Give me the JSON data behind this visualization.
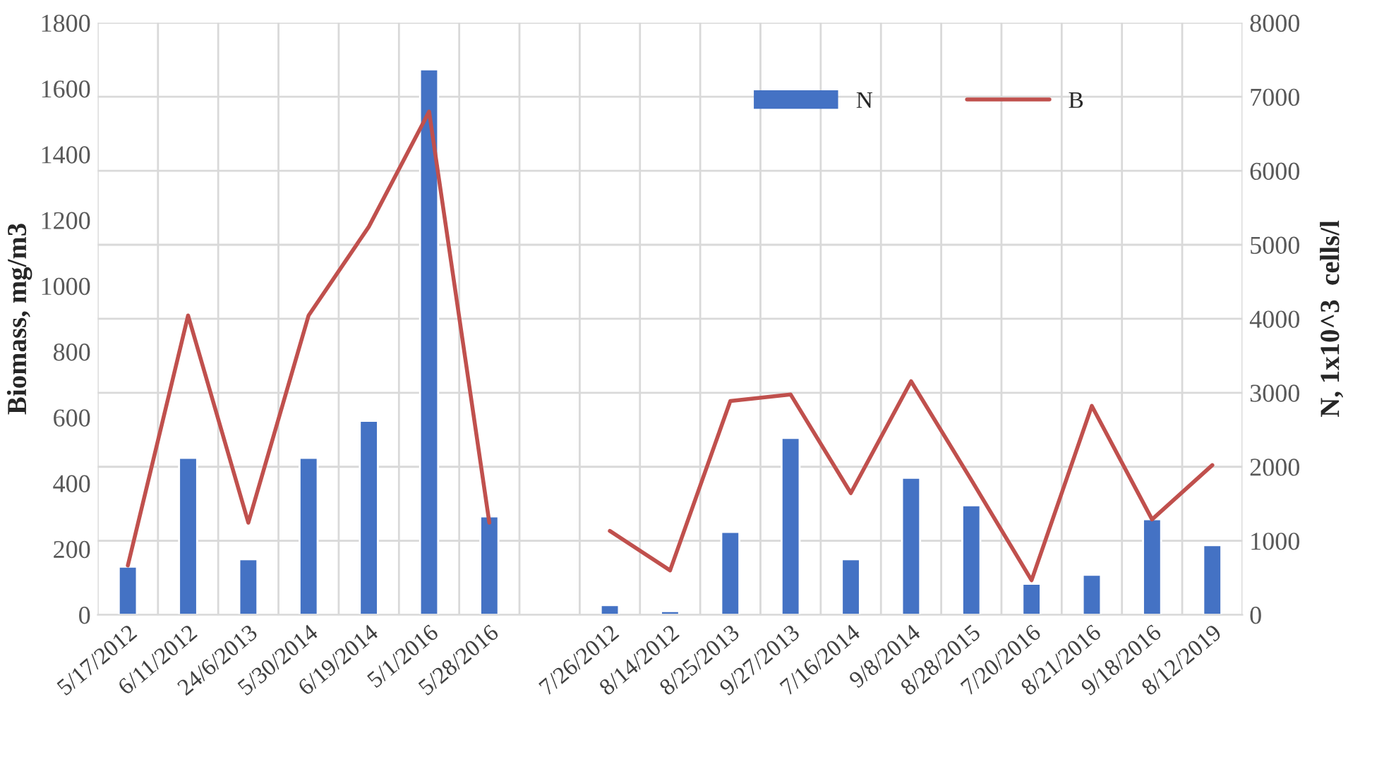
{
  "chart_data": {
    "type": "bar",
    "ylabel": "Biomass, mg/m3",
    "y2label": "N, 1x10^3  cells/l",
    "categories": [
      "5/17/2012",
      "6/11/2012",
      "24/6/2013",
      "5/30/2014",
      "6/19/2014",
      "5/1/2016",
      "5/28/2016",
      null,
      "7/26/2012",
      "8/14/2012",
      "8/25/2013",
      "9/27/2013",
      "7/16/2014",
      "9/8/2014",
      "8/28/2015",
      "7/20/2016",
      "8/21/2016",
      "9/18/2016",
      "8/12/2019"
    ],
    "series": [
      {
        "name": "N",
        "axis": "y2",
        "color": "#4472c4",
        "values": [
          650,
          2120,
          750,
          2120,
          2620,
          7370,
          1330,
          null,
          130,
          50,
          1120,
          2390,
          750,
          1850,
          1480,
          420,
          540,
          1290,
          940
        ]
      },
      {
        "name": "B",
        "type": "line",
        "axis": "y",
        "color": "#c0504d",
        "values": [
          150,
          910,
          280,
          910,
          1180,
          1530,
          280,
          null,
          255,
          135,
          650,
          670,
          370,
          710,
          410,
          105,
          635,
          290,
          455
        ]
      }
    ],
    "ylim": [
      0,
      1800
    ],
    "yticks": [
      0,
      200,
      400,
      600,
      800,
      1000,
      1200,
      1400,
      1600,
      1800
    ],
    "y2lim": [
      0,
      8000
    ],
    "y2ticks": [
      0,
      1000,
      2000,
      3000,
      4000,
      5000,
      6000,
      7000,
      8000
    ],
    "grid": true,
    "legend": "top right",
    "marker": "none",
    "line_style": "solid"
  }
}
